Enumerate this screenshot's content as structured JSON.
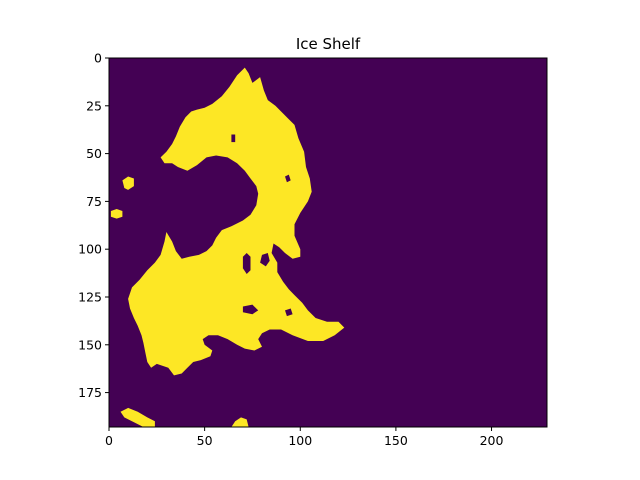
{
  "chart_data": {
    "type": "heatmap",
    "title": "Ice Shelf",
    "xlabel": "",
    "ylabel": "",
    "grid": false,
    "colors": {
      "background": "#440154",
      "ice": "#fde725"
    },
    "x_extent": [
      0,
      229
    ],
    "y_extent": [
      0,
      193
    ],
    "y_axis_inverted": true,
    "x_ticks": [
      0,
      50,
      100,
      150,
      200
    ],
    "y_ticks": [
      0,
      25,
      50,
      75,
      100,
      125,
      150,
      175
    ],
    "x_tick_labels": [
      "0",
      "50",
      "100",
      "150",
      "200"
    ],
    "y_tick_labels": [
      "0",
      "25",
      "50",
      "75",
      "100",
      "125",
      "150",
      "175"
    ],
    "ice_regions": [
      {
        "name": "main-shelf",
        "outline": [
          [
            71,
            5
          ],
          [
            73,
            8
          ],
          [
            75,
            13
          ],
          [
            79,
            10
          ],
          [
            81,
            17
          ],
          [
            83,
            22
          ],
          [
            87,
            25
          ],
          [
            90,
            28
          ],
          [
            94,
            32
          ],
          [
            97,
            35
          ],
          [
            99,
            42
          ],
          [
            102,
            49
          ],
          [
            103,
            57
          ],
          [
            105,
            63
          ],
          [
            106,
            70
          ],
          [
            104,
            75
          ],
          [
            100,
            81
          ],
          [
            97,
            87
          ],
          [
            97,
            93
          ],
          [
            100,
            100
          ],
          [
            100,
            104
          ],
          [
            96,
            105
          ],
          [
            92,
            102
          ],
          [
            89,
            99
          ],
          [
            86,
            97
          ],
          [
            85,
            102
          ],
          [
            88,
            107
          ],
          [
            88,
            112
          ],
          [
            91,
            117
          ],
          [
            94,
            121
          ],
          [
            97,
            124
          ],
          [
            101,
            128
          ],
          [
            104,
            132
          ],
          [
            108,
            136
          ],
          [
            114,
            138
          ],
          [
            120,
            138
          ],
          [
            123,
            141
          ],
          [
            118,
            145
          ],
          [
            112,
            148
          ],
          [
            104,
            148
          ],
          [
            96,
            145
          ],
          [
            90,
            142
          ],
          [
            84,
            142
          ],
          [
            80,
            144
          ],
          [
            78,
            147
          ],
          [
            80,
            151
          ],
          [
            76,
            153
          ],
          [
            71,
            152
          ],
          [
            67,
            150
          ],
          [
            62,
            147
          ],
          [
            57,
            145
          ],
          [
            52,
            145
          ],
          [
            49,
            147
          ],
          [
            50,
            150
          ],
          [
            54,
            153
          ],
          [
            53,
            156
          ],
          [
            48,
            158
          ],
          [
            44,
            159
          ],
          [
            41,
            162
          ],
          [
            38,
            165
          ],
          [
            34,
            166
          ],
          [
            31,
            162
          ],
          [
            25,
            160
          ],
          [
            22,
            162
          ],
          [
            20,
            159
          ],
          [
            19,
            154
          ],
          [
            18,
            149
          ],
          [
            17,
            145
          ],
          [
            15,
            140
          ],
          [
            13,
            136
          ],
          [
            11,
            131
          ],
          [
            10,
            126
          ],
          [
            12,
            120
          ],
          [
            16,
            116
          ],
          [
            20,
            111
          ],
          [
            24,
            107
          ],
          [
            27,
            103
          ],
          [
            29,
            96
          ],
          [
            30,
            91
          ],
          [
            33,
            96
          ],
          [
            35,
            101
          ],
          [
            38,
            105
          ],
          [
            42,
            104
          ],
          [
            47,
            103
          ],
          [
            51,
            101
          ],
          [
            54,
            98
          ],
          [
            56,
            94
          ],
          [
            59,
            90
          ],
          [
            64,
            88
          ],
          [
            70,
            85
          ],
          [
            74,
            82
          ],
          [
            77,
            77
          ],
          [
            78,
            71
          ],
          [
            77,
            67
          ],
          [
            74,
            63
          ],
          [
            71,
            59
          ],
          [
            67,
            55
          ],
          [
            62,
            52
          ],
          [
            56,
            51
          ],
          [
            51,
            52
          ],
          [
            46,
            56
          ],
          [
            41,
            59
          ],
          [
            36,
            57
          ],
          [
            33,
            55
          ],
          [
            29,
            55
          ],
          [
            27,
            52
          ],
          [
            30,
            49
          ],
          [
            33,
            45
          ],
          [
            35,
            41
          ],
          [
            37,
            36
          ],
          [
            40,
            31
          ],
          [
            43,
            28
          ],
          [
            46,
            27
          ],
          [
            50,
            26
          ],
          [
            54,
            24
          ],
          [
            59,
            20
          ],
          [
            63,
            15
          ],
          [
            67,
            9
          ]
        ]
      },
      {
        "name": "left-islet-upper",
        "outline": [
          [
            7,
            64
          ],
          [
            10,
            62
          ],
          [
            13,
            63
          ],
          [
            13,
            67
          ],
          [
            10,
            69
          ],
          [
            8,
            68
          ]
        ]
      },
      {
        "name": "left-islet-middle",
        "outline": [
          [
            1,
            80
          ],
          [
            4,
            79
          ],
          [
            7,
            80
          ],
          [
            7,
            83
          ],
          [
            4,
            84
          ],
          [
            1,
            83
          ]
        ]
      },
      {
        "name": "bottom-left-islet",
        "outline": [
          [
            6,
            185
          ],
          [
            10,
            183
          ],
          [
            15,
            185
          ],
          [
            20,
            188
          ],
          [
            24,
            190
          ],
          [
            24,
            193
          ],
          [
            18,
            193
          ],
          [
            12,
            190
          ],
          [
            8,
            188
          ]
        ]
      },
      {
        "name": "bottom-center-islet",
        "outline": [
          [
            64,
            193
          ],
          [
            66,
            190
          ],
          [
            69,
            188
          ],
          [
            72,
            189
          ],
          [
            73,
            193
          ]
        ]
      }
    ],
    "holes": [
      {
        "name": "hole-upper",
        "outline": [
          [
            64,
            40
          ],
          [
            66,
            40
          ],
          [
            66,
            44
          ],
          [
            64,
            44
          ]
        ]
      },
      {
        "name": "hole-middle-left",
        "outline": [
          [
            70,
            104
          ],
          [
            72,
            102
          ],
          [
            74,
            104
          ],
          [
            74,
            111
          ],
          [
            72,
            113
          ],
          [
            70,
            110
          ]
        ]
      },
      {
        "name": "hole-middle-right",
        "outline": [
          [
            80,
            103
          ],
          [
            83,
            102
          ],
          [
            84,
            106
          ],
          [
            82,
            109
          ],
          [
            79,
            107
          ]
        ]
      },
      {
        "name": "hole-lower-left",
        "outline": [
          [
            70,
            130
          ],
          [
            75,
            129
          ],
          [
            78,
            132
          ],
          [
            75,
            134
          ],
          [
            70,
            133
          ]
        ]
      },
      {
        "name": "hole-lower-right",
        "outline": [
          [
            92,
            132
          ],
          [
            95,
            131
          ],
          [
            96,
            134
          ],
          [
            93,
            135
          ]
        ]
      },
      {
        "name": "hole-right",
        "outline": [
          [
            92,
            62
          ],
          [
            94,
            61
          ],
          [
            95,
            64
          ],
          [
            93,
            65
          ]
        ]
      }
    ]
  }
}
